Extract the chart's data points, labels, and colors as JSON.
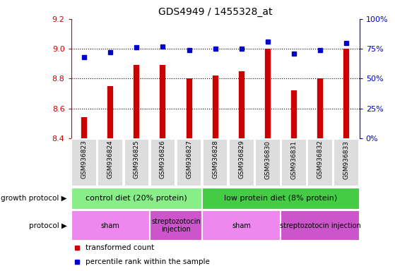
{
  "title": "GDS4949 / 1455328_at",
  "samples": [
    "GSM936823",
    "GSM936824",
    "GSM936825",
    "GSM936826",
    "GSM936827",
    "GSM936828",
    "GSM936829",
    "GSM936830",
    "GSM936831",
    "GSM936832",
    "GSM936833"
  ],
  "transformed_count": [
    8.54,
    8.75,
    8.89,
    8.89,
    8.8,
    8.82,
    8.85,
    9.0,
    8.72,
    8.8,
    9.0
  ],
  "percentile_rank": [
    68,
    72,
    76,
    77,
    74,
    75,
    75,
    81,
    71,
    74,
    80
  ],
  "ylim_left": [
    8.4,
    9.2
  ],
  "ylim_right": [
    0,
    100
  ],
  "yticks_left": [
    8.4,
    8.6,
    8.8,
    9.0,
    9.2
  ],
  "yticks_right": [
    0,
    25,
    50,
    75,
    100
  ],
  "bar_color": "#cc0000",
  "dot_color": "#0000cc",
  "bg_color": "#ffffff",
  "growth_groups": [
    {
      "label": "control diet (20% protein)",
      "start": 0,
      "end": 4,
      "color": "#88ee88"
    },
    {
      "label": "low protein diet (8% protein)",
      "start": 5,
      "end": 10,
      "color": "#44cc44"
    }
  ],
  "protocol_groups": [
    {
      "label": "sham",
      "start": 0,
      "end": 2,
      "color": "#ee88ee"
    },
    {
      "label": "streptozotocin\ninjection",
      "start": 3,
      "end": 4,
      "color": "#cc55cc"
    },
    {
      "label": "sham",
      "start": 5,
      "end": 7,
      "color": "#ee88ee"
    },
    {
      "label": "streptozotocin injection",
      "start": 8,
      "end": 10,
      "color": "#cc55cc"
    }
  ],
  "growth_protocol_label": "growth protocol",
  "protocol_label": "protocol",
  "legend_bar_label": "transformed count",
  "legend_dot_label": "percentile rank within the sample"
}
